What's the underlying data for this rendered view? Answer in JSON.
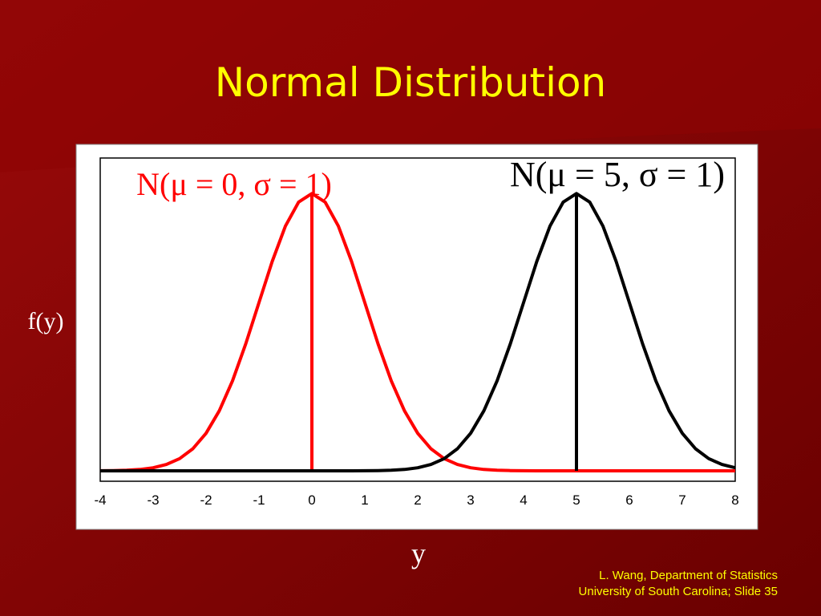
{
  "chart_data": {
    "type": "line",
    "title": "Normal Distribution",
    "x_label": "y",
    "y_label": "f(y)",
    "x": [
      -4,
      -3.75,
      -3.5,
      -3.25,
      -3,
      -2.75,
      -2.5,
      -2.25,
      -2,
      -1.75,
      -1.5,
      -1.25,
      -1,
      -0.75,
      -0.5,
      -0.25,
      0,
      0.25,
      0.5,
      0.75,
      1,
      1.25,
      1.5,
      1.75,
      2,
      2.25,
      2.5,
      2.75,
      3,
      3.25,
      3.5,
      3.75,
      4,
      4.25,
      4.5,
      4.75,
      5,
      5.25,
      5.5,
      5.75,
      6,
      6.25,
      6.5,
      6.75,
      7,
      7.25,
      7.5,
      7.75,
      8
    ],
    "series": [
      {
        "name": "N(μ = 0, σ = 1)",
        "color": "#ff0000",
        "mean": 0,
        "values": [
          0.0001,
          0.0004,
          0.0009,
          0.002,
          0.0044,
          0.0091,
          0.0175,
          0.0317,
          0.054,
          0.0863,
          0.1295,
          0.1826,
          0.242,
          0.3011,
          0.3521,
          0.3867,
          0.3989,
          0.3867,
          0.3521,
          0.3011,
          0.242,
          0.1826,
          0.1295,
          0.0863,
          0.054,
          0.0317,
          0.0175,
          0.0091,
          0.0044,
          0.002,
          0.0009,
          0.0004,
          0.0001,
          0,
          0,
          0,
          0,
          0,
          0,
          0,
          0,
          0,
          0,
          0,
          0,
          0,
          0,
          0,
          0
        ]
      },
      {
        "name": "N(μ = 5, σ = 1)",
        "color": "#000000",
        "mean": 5,
        "values": [
          0,
          0,
          0,
          0,
          0,
          0,
          0,
          0,
          0,
          0,
          0,
          0,
          0,
          0,
          0,
          0,
          0,
          0,
          0,
          0,
          0.0001,
          0.0004,
          0.0009,
          0.002,
          0.0044,
          0.0091,
          0.0175,
          0.0317,
          0.054,
          0.0863,
          0.1295,
          0.1826,
          0.242,
          0.3011,
          0.3521,
          0.3867,
          0.3989,
          0.3867,
          0.3521,
          0.3011,
          0.242,
          0.1826,
          0.1295,
          0.0863,
          0.054,
          0.0317,
          0.0175,
          0.0091,
          0.0044
        ]
      }
    ],
    "xlim": [
      -4,
      8
    ],
    "xticks": [
      -4,
      -3,
      -2,
      -1,
      0,
      1,
      2,
      3,
      4,
      5,
      6,
      7,
      8
    ],
    "ylim": [
      -0.015,
      0.45
    ]
  },
  "footer": [
    "L. Wang, Department of Statistics",
    "University of South Carolina; Slide 35"
  ]
}
